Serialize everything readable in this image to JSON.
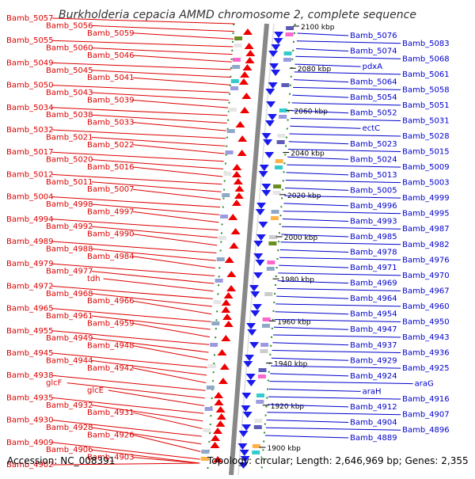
{
  "title": "Burkholderia cepacia AMMD chromosome 2, complete sequence",
  "footer": {
    "accession": "Accession: NC_008391",
    "summary": "Topology: circular; Length: 2,646,969 bp; Genes: 2,355"
  },
  "colors": {
    "left_label": "#dd0000",
    "right_label": "#0000cc",
    "forward_gene": "#ee0000",
    "reverse_gene": "#1a1aee",
    "backbone": "#888888",
    "gc_dash": "#2e8b2e"
  },
  "ticks": [
    {
      "label": "2100 kbp"
    },
    {
      "label": "2080 kbp"
    },
    {
      "label": "2060 kbp"
    },
    {
      "label": "2040 kbp"
    },
    {
      "label": "2020 kbp"
    },
    {
      "label": "2000 kbp"
    },
    {
      "label": "1980 kbp"
    },
    {
      "label": "1960 kbp"
    },
    {
      "label": "1940 kbp"
    },
    {
      "label": "1920 kbp"
    },
    {
      "label": "1900 kbp"
    }
  ],
  "left_labels": [
    "Bamb_5057",
    "Bamb_5056",
    "Bamb_5059",
    "Bamb_5055",
    "Bamb_5060",
    "Bamb_5046",
    "Bamb_5049",
    "Bamb_5045",
    "Bamb_5041",
    "Bamb_5050",
    "Bamb_5043",
    "Bamb_5039",
    "Bamb_5034",
    "Bamb_5038",
    "Bamb_5033",
    "Bamb_5032",
    "Bamb_5021",
    "Bamb_5022",
    "Bamb_5017",
    "Bamb_5020",
    "Bamb_5016",
    "Bamb_5012",
    "Bamb_5011",
    "Bamb_5007",
    "Bamb_5004",
    "Bamb_4998",
    "Bamb_4997",
    "Bamb_4994",
    "Bamb_4992",
    "Bamb_4990",
    "Bamb_4989",
    "Bamb_4988",
    "Bamb_4984",
    "Bamb_4979",
    "Bamb_4977",
    "tdh",
    "Bamb_4972",
    "Bamb_4968",
    "Bamb_4966",
    "Bamb_4965",
    "Bamb_4961",
    "Bamb_4959",
    "Bamb_4955",
    "Bamb_4949",
    "Bamb_4948",
    "Bamb_4945",
    "Bamb_4944",
    "Bamb_4942",
    "Bamb_4938",
    "glcF",
    "glcE",
    "Bamb_4935",
    "Bamb_4932",
    "Bamb_4931",
    "Bamb_4930",
    "Bamb_4928",
    "Bamb_4926",
    "Bamb_4909",
    "Bamb_4906",
    "Bamb_4903",
    "Bamb_4902"
  ],
  "right_labels": [
    "Bamb_5076",
    "Bamb_5083",
    "Bamb_5074",
    "Bamb_5068",
    "pdxA",
    "Bamb_5061",
    "Bamb_5064",
    "Bamb_5058",
    "Bamb_5054",
    "Bamb_5051",
    "Bamb_5052",
    "Bamb_5031",
    "ectC",
    "Bamb_5028",
    "Bamb_5023",
    "Bamb_5015",
    "Bamb_5024",
    "Bamb_5009",
    "Bamb_5013",
    "Bamb_5003",
    "Bamb_5005",
    "Bamb_4999",
    "Bamb_4996",
    "Bamb_4995",
    "Bamb_4993",
    "Bamb_4987",
    "Bamb_4985",
    "Bamb_4982",
    "Bamb_4978",
    "Bamb_4976",
    "Bamb_4971",
    "Bamb_4970",
    "Bamb_4969",
    "Bamb_4967",
    "Bamb_4964",
    "Bamb_4960",
    "Bamb_4954",
    "Bamb_4950",
    "Bamb_4947",
    "Bamb_4943",
    "Bamb_4937",
    "Bamb_4936",
    "Bamb_4929",
    "Bamb_4925",
    "Bamb_4924",
    "araG",
    "araH",
    "Bamb_4916",
    "Bamb_4912",
    "Bamb_4907",
    "Bamb_4904",
    "Bamb_4896",
    "Bamb_4889"
  ]
}
